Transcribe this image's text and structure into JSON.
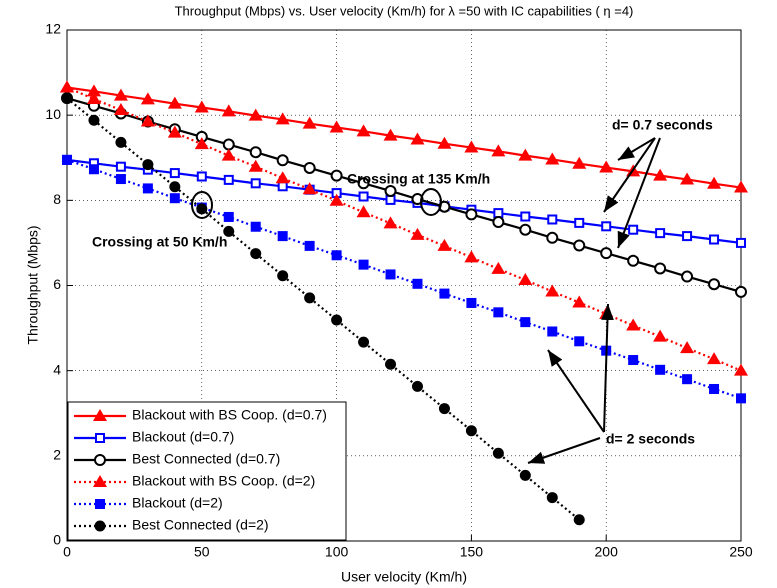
{
  "chart_data": {
    "type": "line",
    "title": "Throughput (Mbps) vs. User velocity (Km/h) for λ =50 with IC capabilities ( η =4)",
    "xlabel": "User velocity (Km/h)",
    "ylabel": "Throughput (Mbps)",
    "x": [
      0,
      10,
      20,
      30,
      40,
      50,
      60,
      70,
      80,
      90,
      100,
      110,
      120,
      130,
      140,
      150,
      160,
      170,
      180,
      190,
      200,
      210,
      220,
      230,
      240,
      250
    ],
    "series": [
      {
        "name": "Blackout with BS Coop. (d=0.7)",
        "color": "#ff0000",
        "marker": "triangle",
        "dash": "solid",
        "values": [
          10.65,
          10.56,
          10.46,
          10.37,
          10.27,
          10.18,
          10.09,
          9.99,
          9.9,
          9.8,
          9.71,
          9.62,
          9.52,
          9.43,
          9.33,
          9.24,
          9.15,
          9.05,
          8.96,
          8.86,
          8.77,
          8.68,
          8.58,
          8.49,
          8.39,
          8.3
        ]
      },
      {
        "name": "Blackout (d=0.7)",
        "color": "#0000ff",
        "marker": "square-open",
        "dash": "solid",
        "values": [
          8.95,
          8.87,
          8.79,
          8.72,
          8.64,
          8.56,
          8.48,
          8.4,
          8.33,
          8.25,
          8.17,
          8.09,
          8.01,
          7.94,
          7.86,
          7.78,
          7.7,
          7.62,
          7.55,
          7.47,
          7.39,
          7.31,
          7.23,
          7.16,
          7.08,
          7.0
        ]
      },
      {
        "name": "Best Connected (d=0.7)",
        "color": "#000000",
        "marker": "circle-open",
        "dash": "solid",
        "values": [
          10.4,
          10.22,
          10.04,
          9.85,
          9.67,
          9.49,
          9.31,
          9.13,
          8.94,
          8.76,
          8.58,
          8.4,
          8.22,
          8.03,
          7.85,
          7.67,
          7.49,
          7.31,
          7.12,
          6.94,
          6.76,
          6.58,
          6.4,
          6.21,
          6.03,
          5.85
        ]
      },
      {
        "name": "Blackout with BS Coop. (d=2)",
        "color": "#ff0000",
        "marker": "triangle",
        "dash": "dotted",
        "values": [
          10.65,
          10.38,
          10.12,
          9.85,
          9.59,
          9.32,
          9.05,
          8.79,
          8.52,
          8.26,
          7.99,
          7.72,
          7.46,
          7.19,
          6.93,
          6.66,
          6.39,
          6.13,
          5.86,
          5.6,
          5.33,
          5.06,
          4.8,
          4.53,
          4.27,
          4.0
        ]
      },
      {
        "name": "Blackout (d=2)",
        "color": "#0000ff",
        "marker": "square",
        "dash": "dotted",
        "values": [
          8.95,
          8.73,
          8.5,
          8.28,
          8.05,
          7.83,
          7.61,
          7.38,
          7.16,
          6.93,
          6.71,
          6.49,
          6.26,
          6.04,
          5.81,
          5.59,
          5.37,
          5.14,
          4.92,
          4.69,
          4.47,
          4.25,
          4.02,
          3.8,
          3.57,
          3.35
        ]
      },
      {
        "name": "Best Connected (d=2)",
        "color": "#000000",
        "marker": "circle",
        "dash": "dotted",
        "values": [
          10.4,
          9.88,
          9.36,
          8.84,
          8.32,
          7.8,
          7.27,
          6.75,
          6.23,
          5.71,
          5.19,
          4.67,
          4.15,
          3.63,
          3.11,
          2.59,
          2.06,
          1.54,
          1.02,
          0.5,
          null,
          null,
          null,
          null,
          null,
          null
        ]
      }
    ],
    "xlim": [
      0,
      250
    ],
    "xticks": [
      0,
      50,
      100,
      150,
      200,
      250
    ],
    "ylim": [
      0,
      12
    ],
    "yticks": [
      0,
      2,
      4,
      6,
      8,
      10,
      12
    ],
    "grid": true,
    "legend": "lower left",
    "annotations": [
      "d= 0.7 seconds",
      "d= 2 seconds",
      "Crossing at 135 Km/h",
      "Crossing at 50 Km/h"
    ]
  }
}
